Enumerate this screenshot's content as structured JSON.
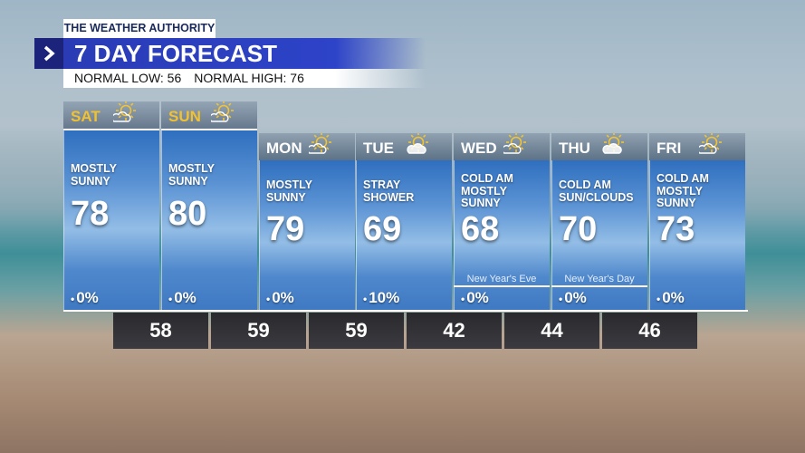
{
  "header": {
    "brand": "THE WEATHER AUTHORITY",
    "title": "7 DAY FORECAST",
    "normal_low": "NORMAL LOW: 56",
    "normal_high": "NORMAL HIGH: 76"
  },
  "days": [
    {
      "name": "SAT",
      "condition": "MOSTLY SUNNY",
      "high": "78",
      "precip": "0%",
      "low": "58",
      "icon": "sun"
    },
    {
      "name": "SUN",
      "condition": "MOSTLY SUNNY",
      "high": "80",
      "precip": "0%",
      "low": "59",
      "icon": "sun"
    },
    {
      "name": "MON",
      "condition": "MOSTLY SUNNY",
      "high": "79",
      "precip": "0%",
      "low": "59",
      "icon": "sun"
    },
    {
      "name": "TUE",
      "condition": "STRAY SHOWER",
      "high": "69",
      "precip": "10%",
      "low": "42",
      "icon": "cloud"
    },
    {
      "name": "WED",
      "condition": "COLD AM MOSTLY SUNNY",
      "high": "68",
      "precip": "0%",
      "note": "New Year's Eve",
      "low": "44",
      "icon": "sun"
    },
    {
      "name": "THU",
      "condition": "COLD AM SUN/CLOUDS",
      "high": "70",
      "precip": "0%",
      "note": "New Year's Day",
      "low": "46",
      "icon": "cloud"
    },
    {
      "name": "FRI",
      "condition": "COLD AM MOSTLY SUNNY",
      "high": "73",
      "precip": "0%",
      "icon": "sun"
    }
  ]
}
